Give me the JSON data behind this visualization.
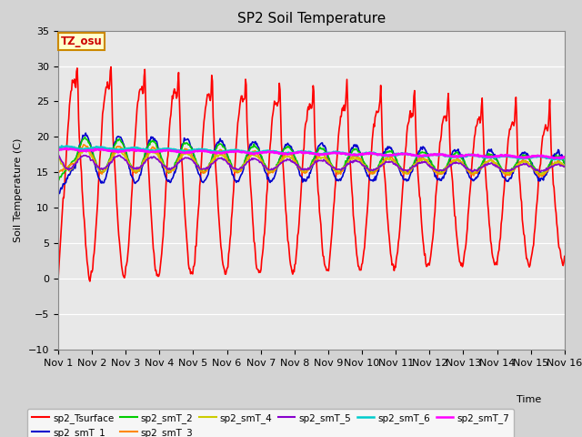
{
  "title": "SP2 Soil Temperature",
  "xlabel": "Time",
  "ylabel": "Soil Temperature (C)",
  "ylim": [
    -10,
    35
  ],
  "xlim": [
    0,
    15
  ],
  "annotation": "TZ_osu",
  "annotation_color": "#cc0000",
  "annotation_bg": "#ffffcc",
  "annotation_border": "#cc8800",
  "fig_bg": "#d3d3d3",
  "plot_bg": "#e8e8e8",
  "xtick_labels": [
    "Nov 1",
    "Nov 2",
    "Nov 3",
    "Nov 4",
    "Nov 5",
    "Nov 6",
    "Nov 7",
    "Nov 8",
    "Nov 9",
    "Nov 10",
    "Nov 11",
    "Nov 12",
    "Nov 13",
    "Nov 14",
    "Nov 15",
    "Nov 16"
  ],
  "ytick_labels": [
    "-10",
    "-5",
    "0",
    "5",
    "10",
    "15",
    "20",
    "25",
    "30",
    "35"
  ],
  "series_colors": {
    "sp2_Tsurface": "#ff0000",
    "sp2_smT_1": "#0000cc",
    "sp2_smT_2": "#00cc00",
    "sp2_smT_3": "#ff8800",
    "sp2_smT_4": "#cccc00",
    "sp2_smT_5": "#8800cc",
    "sp2_smT_6": "#00cccc",
    "sp2_smT_7": "#ff00ff"
  },
  "series_lw": {
    "sp2_Tsurface": 1.2,
    "sp2_smT_1": 1.2,
    "sp2_smT_2": 1.2,
    "sp2_smT_3": 1.2,
    "sp2_smT_4": 1.2,
    "sp2_smT_5": 1.2,
    "sp2_smT_6": 1.8,
    "sp2_smT_7": 1.8
  }
}
